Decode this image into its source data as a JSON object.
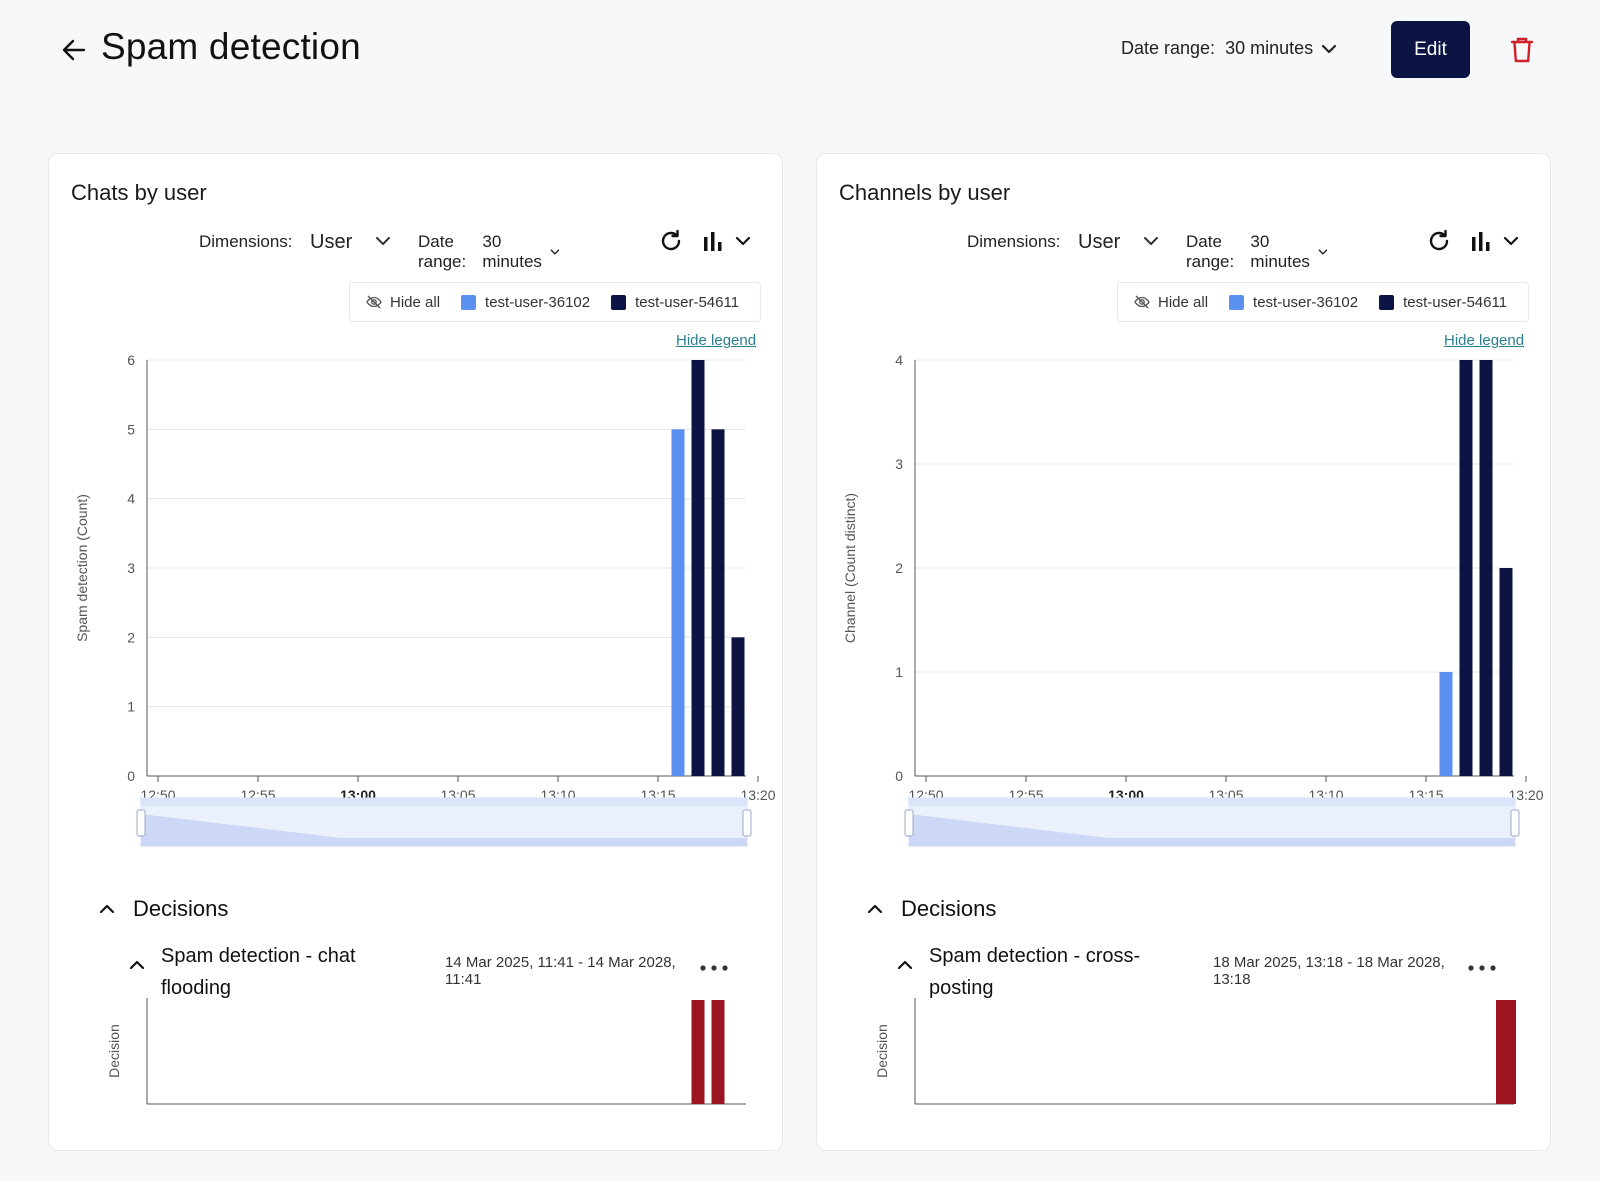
{
  "header": {
    "title": "Spam detection",
    "date_range_label": "Date range:",
    "date_range_value": "30 minutes",
    "edit_label": "Edit"
  },
  "panels": [
    {
      "title": "Chats by user",
      "dimensions_label": "Dimensions:",
      "dimensions_value": "User",
      "date_range_label": "Date range:",
      "date_range_value": "30 minutes",
      "legend": {
        "hide_all": "Hide all",
        "items": [
          "test-user-36102",
          "test-user-54611"
        ]
      },
      "hide_legend": "Hide legend",
      "decisions_title": "Decisions",
      "rule": {
        "name": "Spam detection - chat flooding",
        "dates": "14 Mar 2025, 11:41 - 14 Mar 2028, 11:41"
      },
      "decision_axis_label": "Decision"
    },
    {
      "title": "Channels by user",
      "dimensions_label": "Dimensions:",
      "dimensions_value": "User",
      "date_range_label": "Date range:",
      "date_range_value": "30 minutes",
      "legend": {
        "hide_all": "Hide all",
        "items": [
          "test-user-36102",
          "test-user-54611"
        ]
      },
      "hide_legend": "Hide legend",
      "decisions_title": "Decisions",
      "rule": {
        "name": "Spam detection - cross-posting",
        "dates": "18 Mar 2025, 13:18 - 18 Mar 2028, 13:18"
      },
      "decision_axis_label": "Decision"
    }
  ],
  "colors": {
    "series_light": "#5b8ff0",
    "series_dark": "#0b1442",
    "decision": "#9b1420",
    "accent_dark": "#0b1442",
    "trash": "#d0202a",
    "link": "#2a7f8f"
  },
  "chart_data": [
    {
      "type": "bar",
      "ylabel": "Spam detection (Count)",
      "x_ticks": [
        "12:50",
        "12:55",
        "13:00",
        "13:05",
        "13:10",
        "13:15",
        "13:20"
      ],
      "x_ticks_bold": [
        "13:00"
      ],
      "ylim": [
        0,
        6
      ],
      "y_ticks": [
        0,
        1,
        2,
        3,
        4,
        5,
        6
      ],
      "grid": true,
      "series": [
        {
          "name": "test-user-36102",
          "color": "#5b8ff0",
          "points": [
            {
              "x": "13:16",
              "y": 5
            }
          ]
        },
        {
          "name": "test-user-54611",
          "color": "#0b1442",
          "points": [
            {
              "x": "13:17",
              "y": 6
            },
            {
              "x": "13:18",
              "y": 5
            },
            {
              "x": "13:19",
              "y": 2
            }
          ]
        }
      ],
      "decisions": [
        {
          "x": "13:17"
        },
        {
          "x": "13:18"
        }
      ]
    },
    {
      "type": "bar",
      "ylabel": "Channel (Count distinct)",
      "x_ticks": [
        "12:50",
        "12:55",
        "13:00",
        "13:05",
        "13:10",
        "13:15",
        "13:20"
      ],
      "x_ticks_bold": [
        "13:00"
      ],
      "ylim": [
        0,
        4
      ],
      "y_ticks": [
        0,
        1,
        2,
        3,
        4
      ],
      "grid": true,
      "series": [
        {
          "name": "test-user-36102",
          "color": "#5b8ff0",
          "points": [
            {
              "x": "13:16",
              "y": 1
            }
          ]
        },
        {
          "name": "test-user-54611",
          "color": "#0b1442",
          "points": [
            {
              "x": "13:17",
              "y": 4
            },
            {
              "x": "13:18",
              "y": 4
            },
            {
              "x": "13:19",
              "y": 2
            }
          ]
        }
      ],
      "decisions": [
        {
          "x": "13:19"
        }
      ]
    }
  ]
}
